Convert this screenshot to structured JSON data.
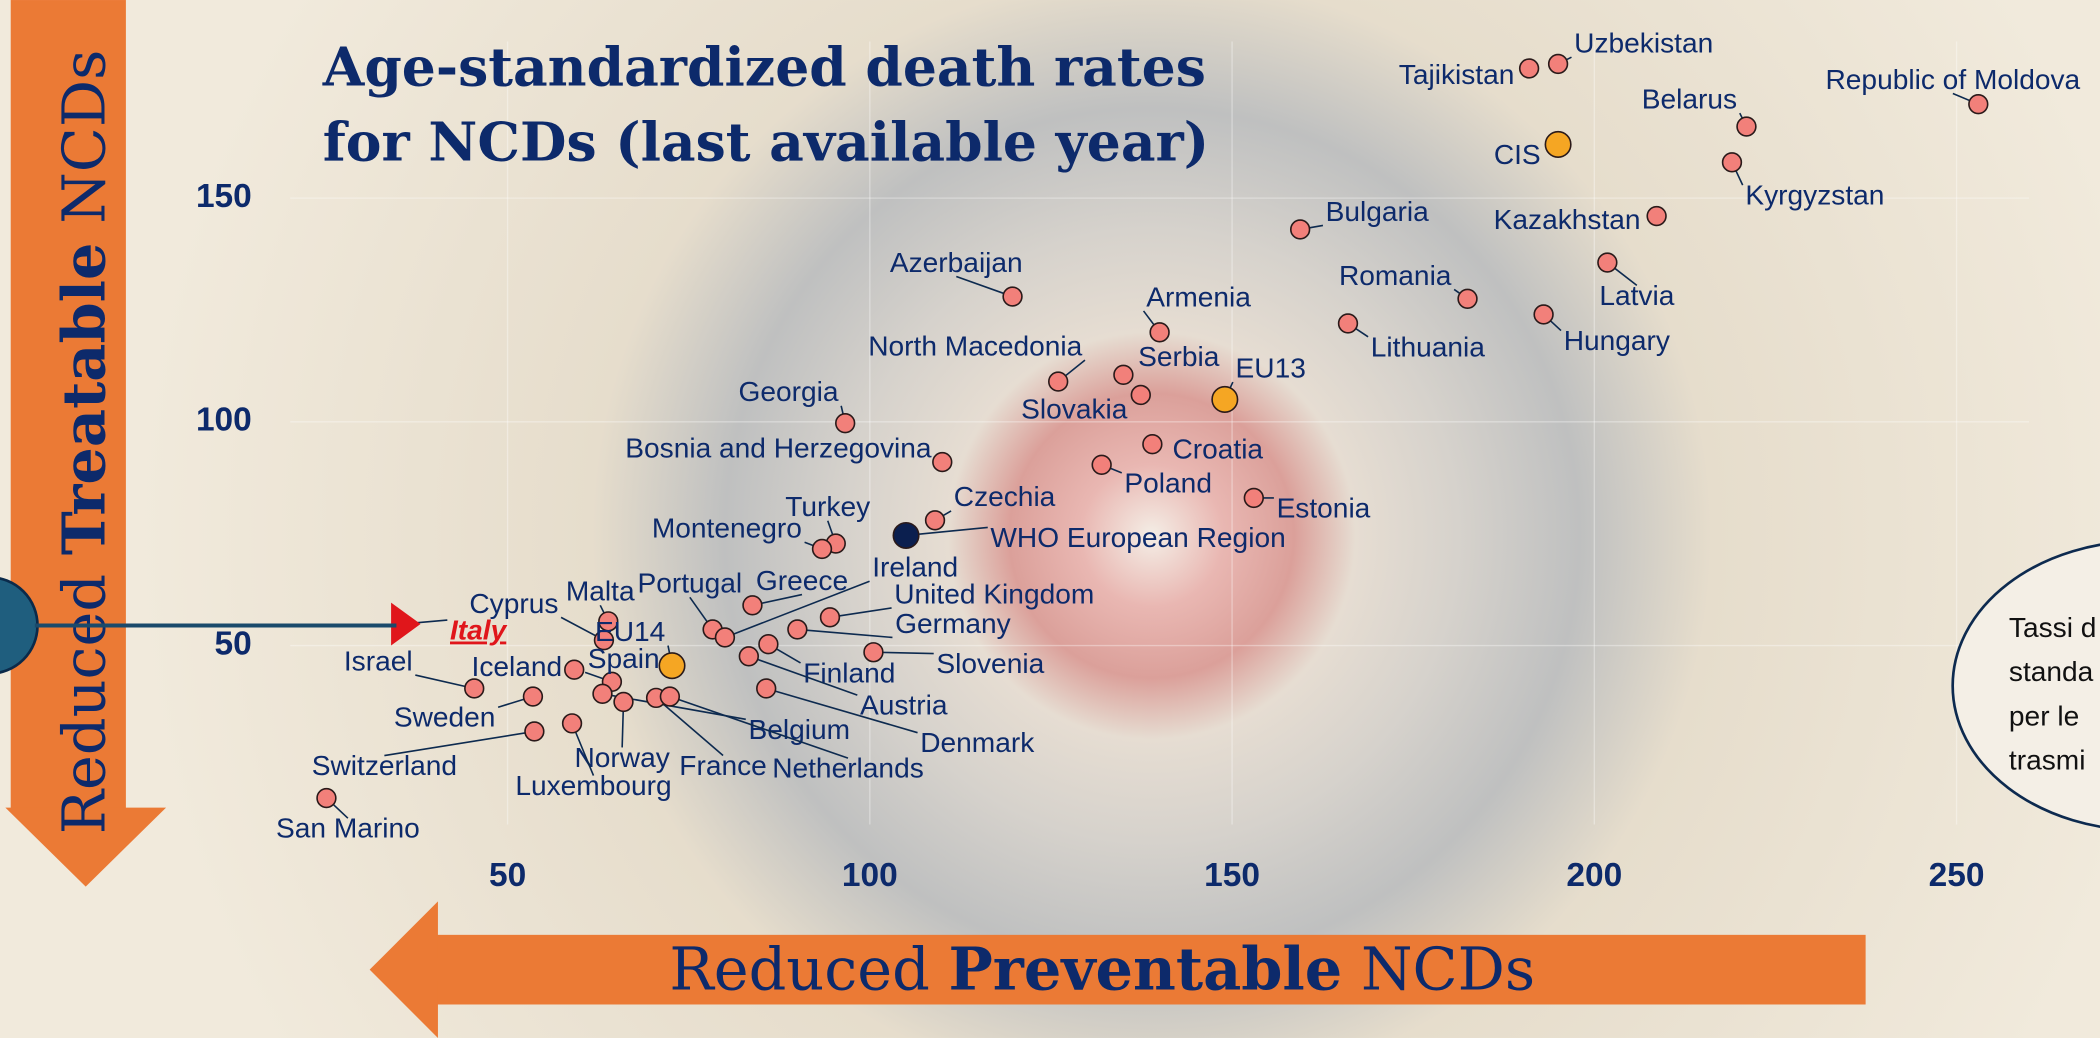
{
  "chart_data": {
    "type": "scatter",
    "title": [
      "Age-standardized death rates",
      "for NCDs (last available year)"
    ],
    "x_label": [
      "Reduced ",
      "Preventable",
      " NCDs"
    ],
    "y_label": [
      "Reduced ",
      "Treatable",
      " NCDs"
    ],
    "side_note": [
      "Tassi d",
      "standa",
      "per le",
      "trasmi"
    ],
    "xlim": [
      20,
      260
    ],
    "ylim": [
      10,
      185
    ],
    "xticks": [
      50,
      100,
      150,
      200,
      250
    ],
    "yticks": [
      50,
      100,
      150
    ],
    "grid": true,
    "labels": [
      "Uzbekistan",
      "Tajikistan",
      "Republic of Moldova",
      "Belarus",
      "CIS",
      "Kyrgyzstan",
      "Kazakhstan",
      "Bulgaria",
      "Latvia",
      "Romania",
      "Azerbaijan",
      "Hungary",
      "Armenia",
      "Lithuania",
      "Serbia",
      "North Macedonia",
      "EU13",
      "Slovakia",
      "Georgia",
      "Croatia",
      "Bosnia and Herzegovina",
      "Poland",
      "Estonia",
      "Czechia",
      "WHO European Region",
      "Turkey",
      "Montenegro",
      "Greece",
      "Malta",
      "United Kingdom",
      "Portugal",
      "Ireland",
      "Germany",
      "Cyprus",
      "Italy",
      "EU14",
      "Finland",
      "Slovenia",
      "Iceland",
      "Spain",
      "Austria",
      "Denmark",
      "Israel",
      "Sweden",
      "Belgium",
      "Norway",
      "France",
      "Netherlands",
      "Luxembourg",
      "Switzerland",
      "San Marino"
    ],
    "x": [
      195,
      191,
      253,
      221,
      195,
      219,
      208.6,
      159.4,
      201.8,
      182.5,
      119.7,
      193,
      140,
      166,
      135,
      126,
      149,
      137.4,
      96.6,
      139,
      110,
      132,
      153,
      109,
      105,
      95.3,
      93.4,
      83.8,
      63.9,
      94.5,
      78.3,
      80,
      90,
      63.3,
      35.4,
      72.7,
      86,
      100.5,
      59.2,
      64.4,
      83.3,
      85.7,
      45.4,
      53.5,
      63.1,
      66,
      70.5,
      72.4,
      58.9,
      53.7,
      25
    ],
    "y": [
      180,
      179,
      171,
      166,
      162,
      158,
      146,
      143,
      135.6,
      127.5,
      128,
      124,
      120,
      122,
      110.5,
      109,
      105,
      106,
      99.7,
      95,
      91,
      90.4,
      83,
      78,
      74.6,
      72.8,
      71.6,
      59,
      55.4,
      56.3,
      53.6,
      51.8,
      53.6,
      51.2,
      54.8,
      45.5,
      50.3,
      48.5,
      44.6,
      41.9,
      47.6,
      40.4,
      40.4,
      38.6,
      39.2,
      37.4,
      38.3,
      38.6,
      32.6,
      30.8,
      15.9
    ],
    "point_colors": [
      "#f2807a",
      "#f2807a",
      "#f2807a",
      "#f2807a",
      "#f5a623",
      "#f2807a",
      "#f2807a",
      "#f2807a",
      "#f2807a",
      "#f2807a",
      "#f2807a",
      "#f2807a",
      "#f2807a",
      "#f2807a",
      "#f2807a",
      "#f2807a",
      "#f5a623",
      "#f2807a",
      "#f2807a",
      "#f2807a",
      "#f2807a",
      "#f2807a",
      "#f2807a",
      "#f2807a",
      "#0b1f4f",
      "#f2807a",
      "#f2807a",
      "#f2807a",
      "#f2807a",
      "#f2807a",
      "#f2807a",
      "#f2807a",
      "#f2807a",
      "#f2807a",
      "#e0161b",
      "#f5a623",
      "#f2807a",
      "#f2807a",
      "#f2807a",
      "#f2807a",
      "#f2807a",
      "#f2807a",
      "#f2807a",
      "#f2807a",
      "#f2807a",
      "#f2807a",
      "#f2807a",
      "#f2807a",
      "#f2807a",
      "#f2807a",
      "#f2807a"
    ],
    "markers": [
      "circle",
      "circle",
      "circle",
      "circle",
      "circle",
      "circle",
      "circle",
      "circle",
      "circle",
      "circle",
      "circle",
      "circle",
      "circle",
      "circle",
      "circle",
      "circle",
      "circle",
      "circle",
      "circle",
      "circle",
      "circle",
      "circle",
      "circle",
      "circle",
      "circle",
      "circle",
      "circle",
      "circle",
      "circle",
      "circle",
      "circle",
      "circle",
      "circle",
      "circle",
      "triangle",
      "circle",
      "circle",
      "circle",
      "circle",
      "circle",
      "circle",
      "circle",
      "circle",
      "circle",
      "circle",
      "circle",
      "circle",
      "circle",
      "circle",
      "circle",
      "circle"
    ]
  }
}
